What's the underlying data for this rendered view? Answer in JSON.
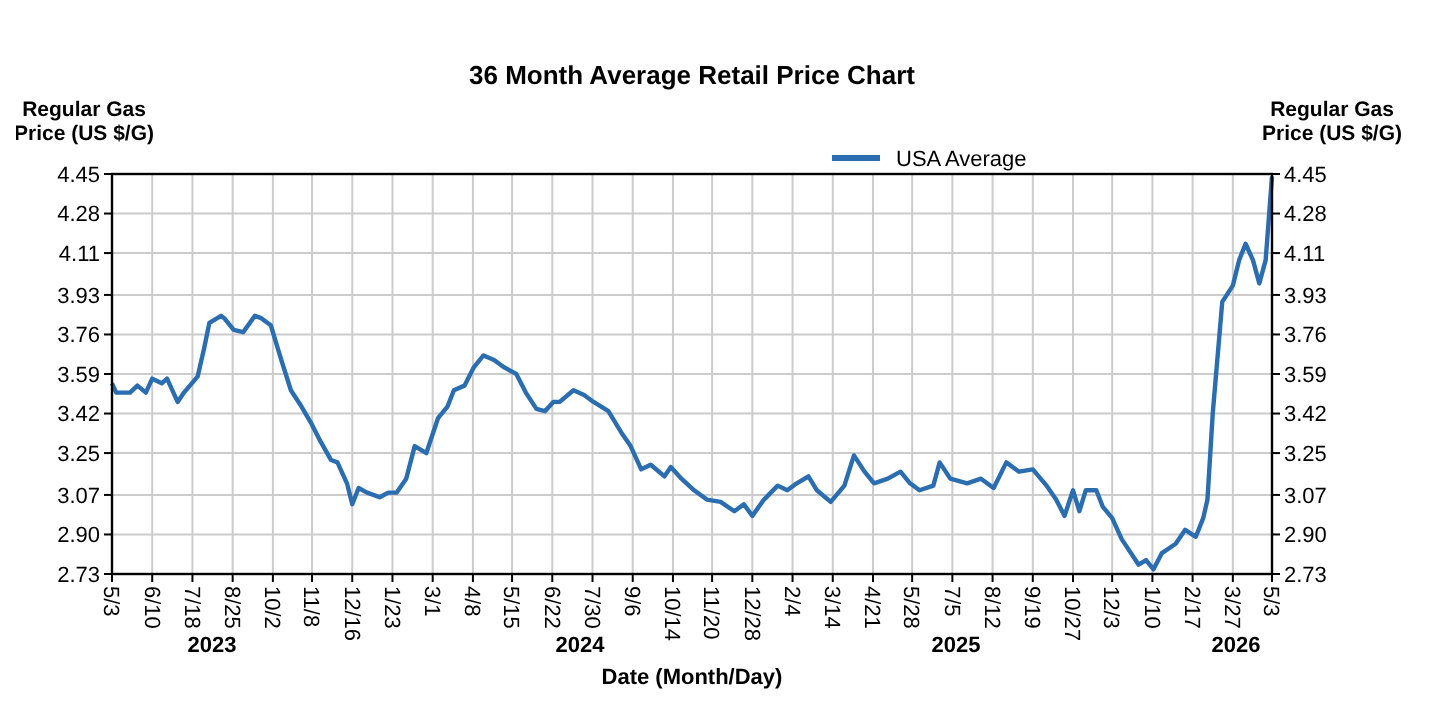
{
  "chart_data": {
    "type": "line",
    "title": "36 Month Average Retail Price Chart",
    "xlabel": "Date (Month/Day)",
    "ylabel": "Regular Gas Price (US $/G)",
    "y2label": "Regular Gas Price (US $/G)",
    "legend": "top",
    "grid": true,
    "xlim": [
      "2023-05-03",
      "2026-05-03"
    ],
    "xticks": [
      {
        "value": "2023-05-03",
        "label": "5/3"
      },
      {
        "value": "2023-06-10",
        "label": "6/10"
      },
      {
        "value": "2023-07-18",
        "label": "7/18"
      },
      {
        "value": "2023-08-25",
        "label": "8/25"
      },
      {
        "value": "2023-10-02",
        "label": "10/2"
      },
      {
        "value": "2023-11-08",
        "label": "11/8"
      },
      {
        "value": "2023-12-16",
        "label": "12/16"
      },
      {
        "value": "2024-01-23",
        "label": "1/23"
      },
      {
        "value": "2024-03-01",
        "label": "3/1"
      },
      {
        "value": "2024-04-08",
        "label": "4/8"
      },
      {
        "value": "2024-05-15",
        "label": "5/15"
      },
      {
        "value": "2024-06-22",
        "label": "6/22"
      },
      {
        "value": "2024-07-30",
        "label": "7/30"
      },
      {
        "value": "2024-09-06",
        "label": "9/6"
      },
      {
        "value": "2024-10-14",
        "label": "10/14"
      },
      {
        "value": "2024-11-20",
        "label": "11/20"
      },
      {
        "value": "2024-12-28",
        "label": "12/28"
      },
      {
        "value": "2025-02-04",
        "label": "2/4"
      },
      {
        "value": "2025-03-14",
        "label": "3/14"
      },
      {
        "value": "2025-04-21",
        "label": "4/21"
      },
      {
        "value": "2025-05-28",
        "label": "5/28"
      },
      {
        "value": "2025-07-05",
        "label": "7/5"
      },
      {
        "value": "2025-08-12",
        "label": "8/12"
      },
      {
        "value": "2025-09-19",
        "label": "9/19"
      },
      {
        "value": "2025-10-27",
        "label": "10/27"
      },
      {
        "value": "2025-12-03",
        "label": "12/3"
      },
      {
        "value": "2026-01-10",
        "label": "1/10"
      },
      {
        "value": "2026-02-17",
        "label": "2/17"
      },
      {
        "value": "2026-03-27",
        "label": "3/27"
      },
      {
        "value": "2026-05-03",
        "label": "5/3"
      }
    ],
    "ylim": [
      2.73,
      4.45
    ],
    "yticks": [
      {
        "value": 2.73,
        "label": "2.73"
      },
      {
        "value": 2.9,
        "label": "2.90"
      },
      {
        "value": 3.07,
        "label": "3.07"
      },
      {
        "value": 3.25,
        "label": "3.25"
      },
      {
        "value": 3.42,
        "label": "3.42"
      },
      {
        "value": 3.59,
        "label": "3.59"
      },
      {
        "value": 3.76,
        "label": "3.76"
      },
      {
        "value": 3.93,
        "label": "3.93"
      },
      {
        "value": 4.11,
        "label": "4.11"
      },
      {
        "value": 4.28,
        "label": "4.28"
      },
      {
        "value": 4.45,
        "label": "4.45"
      }
    ],
    "y2lim": [
      2.73,
      4.45
    ],
    "y2ticks": [
      {
        "value": 2.73,
        "label": "2.73"
      },
      {
        "value": 2.9,
        "label": "2.90"
      },
      {
        "value": 3.07,
        "label": "3.07"
      },
      {
        "value": 3.25,
        "label": "3.25"
      },
      {
        "value": 3.42,
        "label": "3.42"
      },
      {
        "value": 3.59,
        "label": "3.59"
      },
      {
        "value": 3.76,
        "label": "3.76"
      },
      {
        "value": 3.93,
        "label": "3.93"
      },
      {
        "value": 4.11,
        "label": "4.11"
      },
      {
        "value": 4.28,
        "label": "4.28"
      },
      {
        "value": 4.45,
        "label": "4.45"
      }
    ],
    "annotations": [
      "2023",
      "2024",
      "2025",
      "2026"
    ],
    "series": [
      {
        "name": "USA Average",
        "color": "#2a6db0",
        "x": [
          "2023-05-03",
          "2023-05-07",
          "2023-05-20",
          "2023-05-27",
          "2023-06-04",
          "2023-06-10",
          "2023-06-19",
          "2023-06-24",
          "2023-07-04",
          "2023-07-10",
          "2023-07-23",
          "2023-07-29",
          "2023-08-03",
          "2023-08-14",
          "2023-08-17",
          "2023-08-26",
          "2023-09-04",
          "2023-09-15",
          "2023-09-21",
          "2023-09-30",
          "2023-10-10",
          "2023-10-19",
          "2023-10-29",
          "2023-11-07",
          "2023-11-16",
          "2023-11-26",
          "2023-12-02",
          "2023-12-11",
          "2023-12-16",
          "2023-12-22",
          "2023-12-30",
          "2024-01-11",
          "2024-01-19",
          "2024-01-27",
          "2024-02-05",
          "2024-02-13",
          "2024-02-24",
          "2024-03-06",
          "2024-03-15",
          "2024-03-21",
          "2024-03-31",
          "2024-04-09",
          "2024-04-18",
          "2024-04-28",
          "2024-05-07",
          "2024-05-19",
          "2024-05-28",
          "2024-06-07",
          "2024-06-15",
          "2024-06-23",
          "2024-06-29",
          "2024-07-12",
          "2024-07-22",
          "2024-07-31",
          "2024-08-14",
          "2024-08-26",
          "2024-09-04",
          "2024-09-14",
          "2024-09-23",
          "2024-10-06",
          "2024-10-12",
          "2024-10-22",
          "2024-11-03",
          "2024-11-15",
          "2024-11-28",
          "2024-12-11",
          "2024-12-20",
          "2024-12-28",
          "2025-01-08",
          "2025-01-21",
          "2025-01-30",
          "2025-02-08",
          "2025-02-19",
          "2025-02-27",
          "2025-03-12",
          "2025-03-25",
          "2025-04-03",
          "2025-04-13",
          "2025-04-22",
          "2025-05-05",
          "2025-05-17",
          "2025-05-26",
          "2025-06-04",
          "2025-06-17",
          "2025-06-23",
          "2025-07-03",
          "2025-07-19",
          "2025-08-01",
          "2025-08-13",
          "2025-08-25",
          "2025-09-06",
          "2025-09-19",
          "2025-10-02",
          "2025-10-11",
          "2025-10-19",
          "2025-10-27",
          "2025-11-02",
          "2025-11-08",
          "2025-11-18",
          "2025-11-24",
          "2025-12-03",
          "2025-12-12",
          "2025-12-28",
          "2026-01-04",
          "2026-01-11",
          "2026-01-19",
          "2026-02-01",
          "2026-02-10",
          "2026-02-20",
          "2026-02-27",
          "2026-03-03",
          "2026-03-08",
          "2026-03-17",
          "2026-03-27",
          "2026-04-02",
          "2026-04-08",
          "2026-04-15",
          "2026-04-21",
          "2026-04-27",
          "2026-05-03"
        ],
        "values": [
          3.55,
          3.51,
          3.51,
          3.54,
          3.51,
          3.57,
          3.55,
          3.57,
          3.47,
          3.51,
          3.58,
          3.7,
          3.81,
          3.84,
          3.83,
          3.78,
          3.77,
          3.84,
          3.83,
          3.8,
          3.65,
          3.52,
          3.45,
          3.38,
          3.3,
          3.22,
          3.21,
          3.12,
          3.03,
          3.1,
          3.08,
          3.06,
          3.08,
          3.08,
          3.14,
          3.28,
          3.25,
          3.4,
          3.45,
          3.52,
          3.54,
          3.62,
          3.67,
          3.65,
          3.62,
          3.59,
          3.51,
          3.44,
          3.43,
          3.47,
          3.47,
          3.52,
          3.5,
          3.47,
          3.43,
          3.34,
          3.28,
          3.18,
          3.2,
          3.15,
          3.19,
          3.14,
          3.09,
          3.05,
          3.04,
          3.0,
          3.03,
          2.98,
          3.05,
          3.11,
          3.09,
          3.12,
          3.15,
          3.09,
          3.04,
          3.11,
          3.24,
          3.17,
          3.12,
          3.14,
          3.17,
          3.12,
          3.09,
          3.11,
          3.21,
          3.14,
          3.12,
          3.14,
          3.1,
          3.21,
          3.17,
          3.18,
          3.11,
          3.05,
          2.98,
          3.09,
          3.0,
          3.09,
          3.09,
          3.02,
          2.97,
          2.88,
          2.77,
          2.79,
          2.75,
          2.82,
          2.86,
          2.92,
          2.89,
          2.97,
          3.05,
          3.42,
          3.9,
          3.97,
          4.08,
          4.15,
          4.08,
          3.98,
          4.08,
          4.44
        ]
      }
    ]
  }
}
